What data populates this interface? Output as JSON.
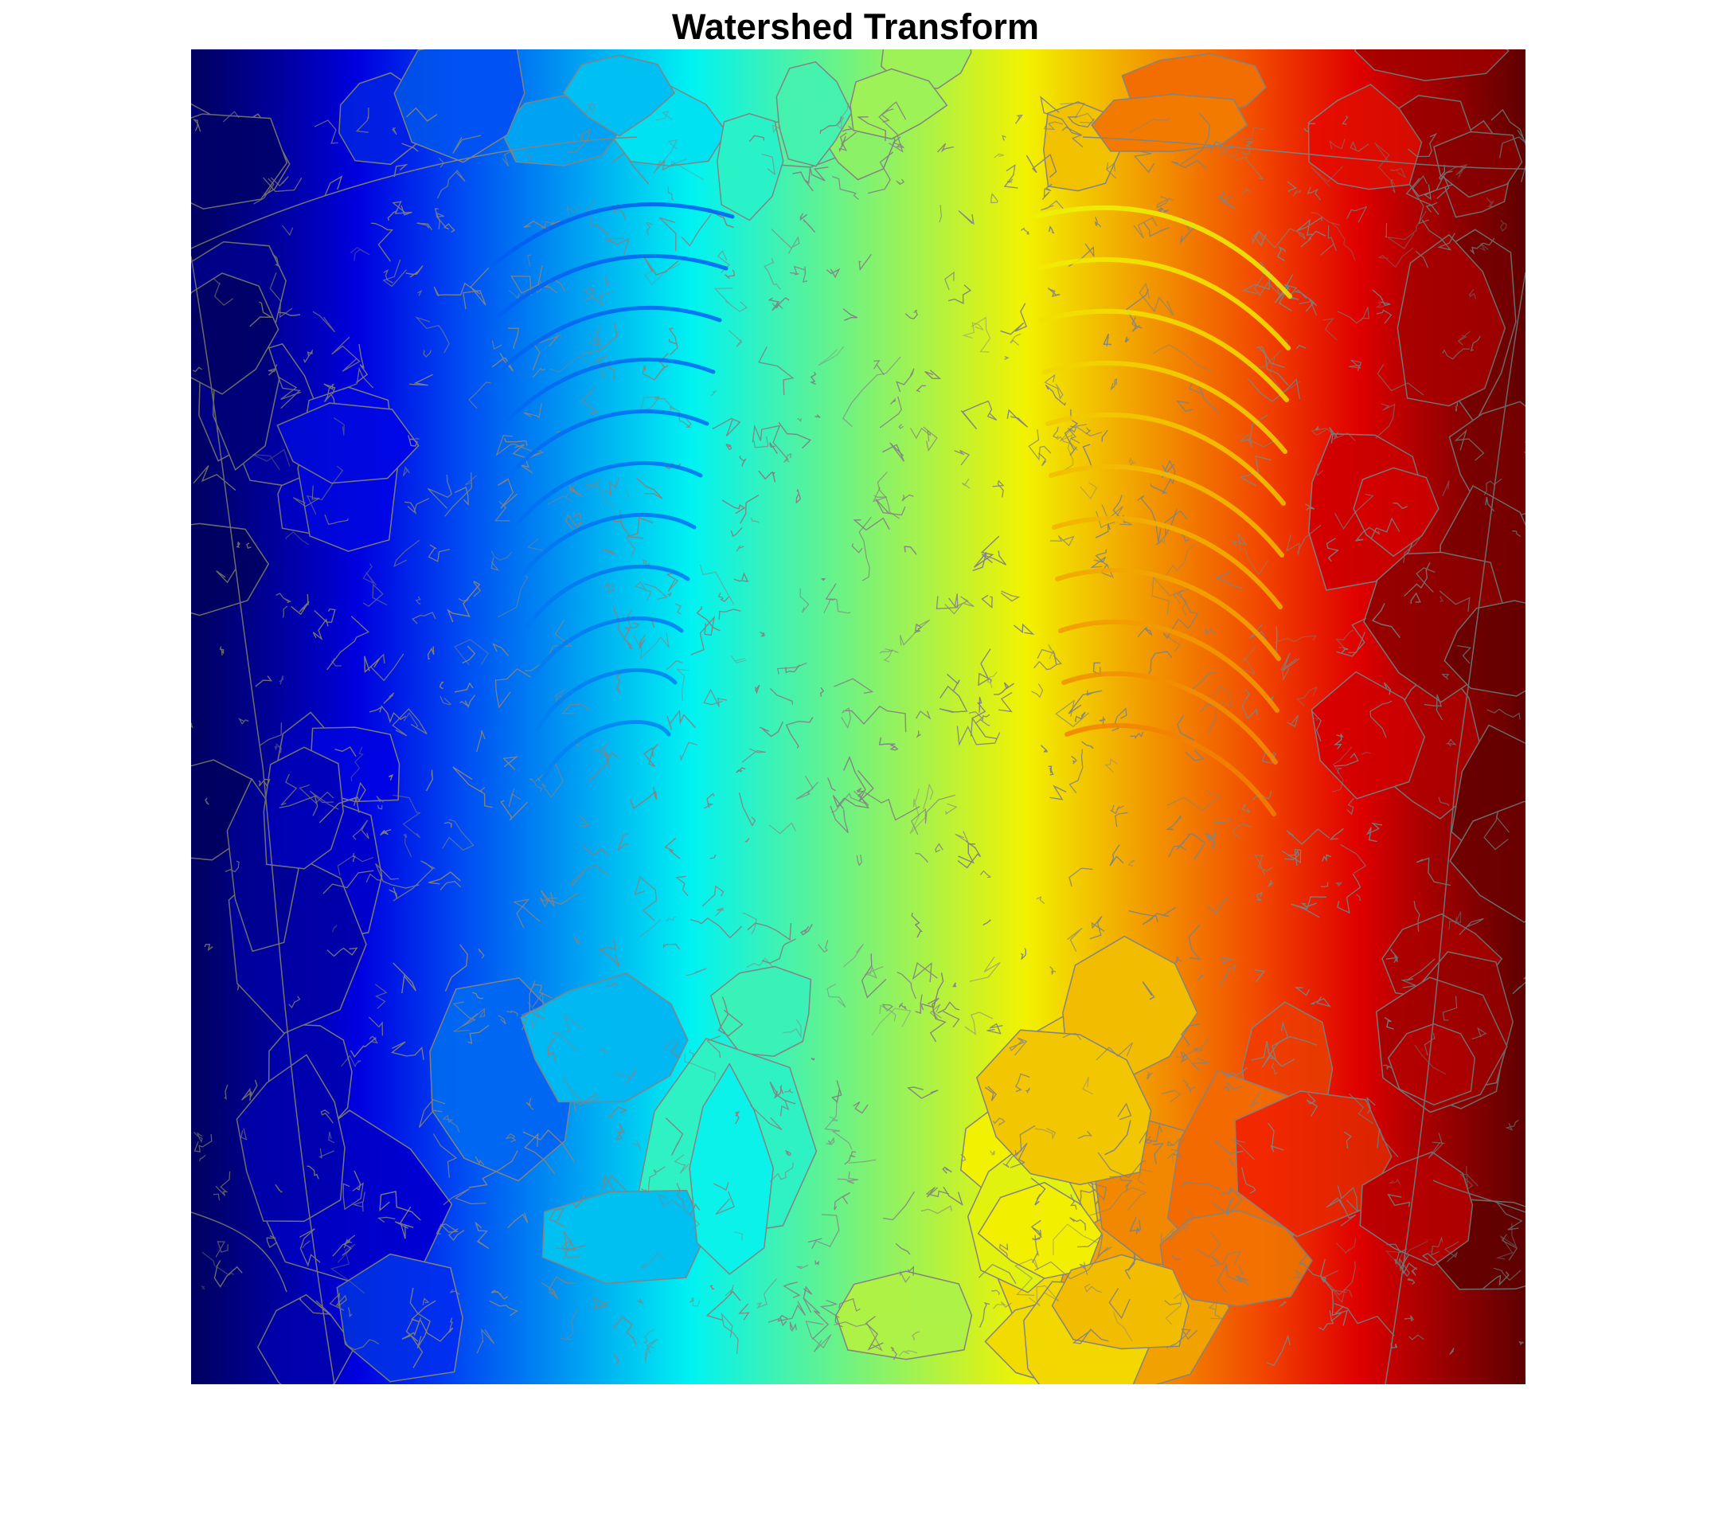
{
  "figure": {
    "title": "Watershed Transform"
  },
  "image": {
    "description_icon": "watershed-label-map-icon",
    "colormap": "jet",
    "colormap_stops": [
      "#00007f",
      "#0000ff",
      "#007fff",
      "#00ffff",
      "#7fff7f",
      "#ffff00",
      "#ff7f00",
      "#ff0000",
      "#7f0000"
    ],
    "ridge_line_color": "#8a8a8a"
  }
}
